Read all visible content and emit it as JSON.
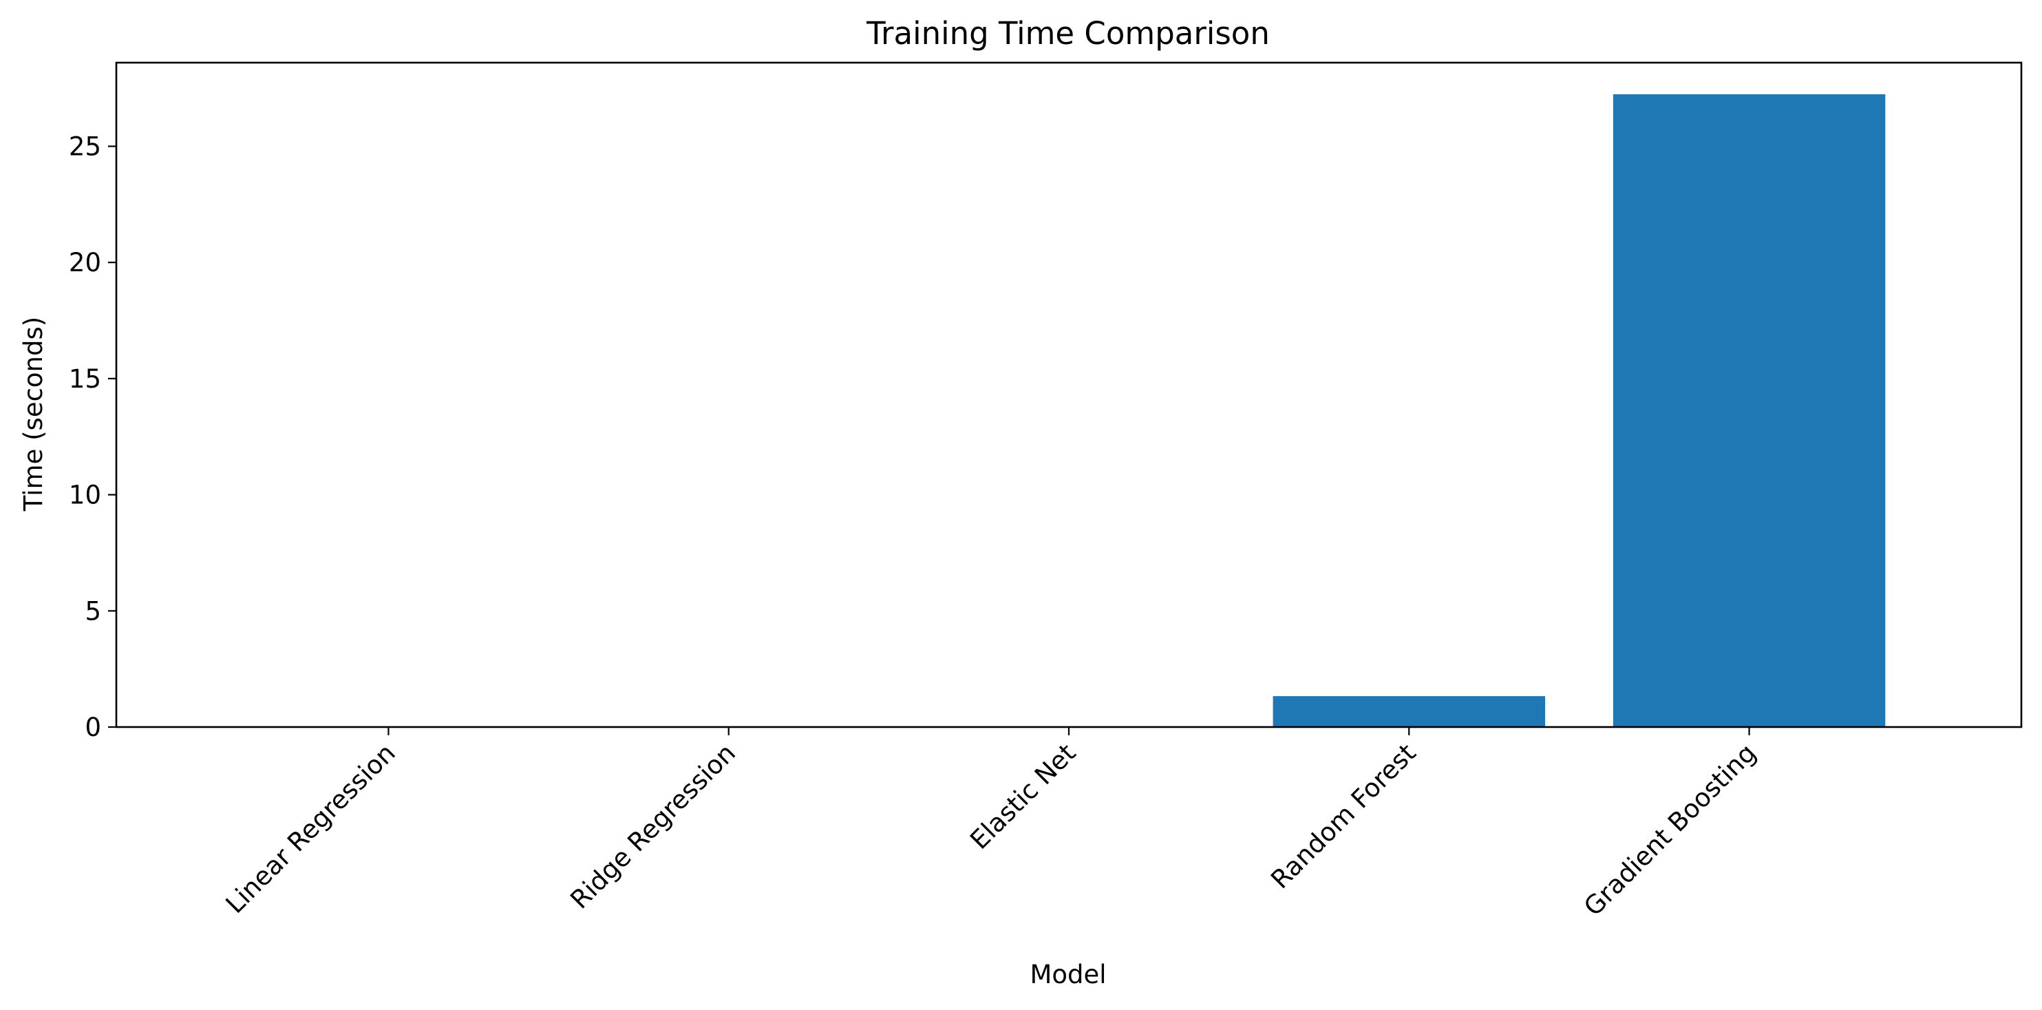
{
  "chart_data": {
    "type": "bar",
    "title": "Training Time Comparison",
    "xlabel": "Model",
    "ylabel": "Time (seconds)",
    "categories": [
      "Linear Regression",
      "Ridge Regression",
      "Elastic Net",
      "Random Forest",
      "Gradient Boosting"
    ],
    "values": [
      0.02,
      0.02,
      0.03,
      1.33,
      27.24
    ],
    "ylim": [
      0,
      28.6
    ],
    "yticks": [
      0,
      5,
      10,
      15,
      20,
      25
    ],
    "grid": false,
    "bar_color": "#1f77b4"
  }
}
